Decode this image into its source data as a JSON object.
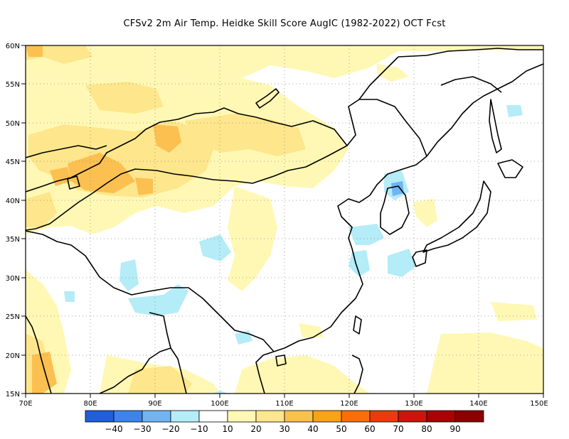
{
  "title": "CFSv2  2m Air Temp. Heidke Skill Score AugIC (1982-2022) OCT Fcst",
  "map": {
    "lat_ticks": [
      "60N",
      "55N",
      "50N",
      "45N",
      "40N",
      "35N",
      "30N",
      "25N",
      "20N",
      "15N"
    ],
    "lon_ticks": [
      "70E",
      "80E",
      "90E",
      "100E",
      "110E",
      "120E",
      "130E",
      "140E",
      "150E"
    ],
    "lat_range": [
      15,
      60
    ],
    "lon_range": [
      70,
      150
    ],
    "grid": "dotted"
  },
  "colorbar": {
    "labels": [
      "−40",
      "−30",
      "−20",
      "−10",
      "10",
      "20",
      "30",
      "40",
      "50",
      "60",
      "70",
      "80",
      "90"
    ],
    "colors": [
      "#1f5fd8",
      "#3c84e8",
      "#72b4f2",
      "#b4ecf7",
      "#ffffff",
      "#fff8b4",
      "#fde68c",
      "#fcc050",
      "#f9a21a",
      "#f76e0c",
      "#ec3a0a",
      "#cc140c",
      "#a80404",
      "#8a0000"
    ]
  }
}
